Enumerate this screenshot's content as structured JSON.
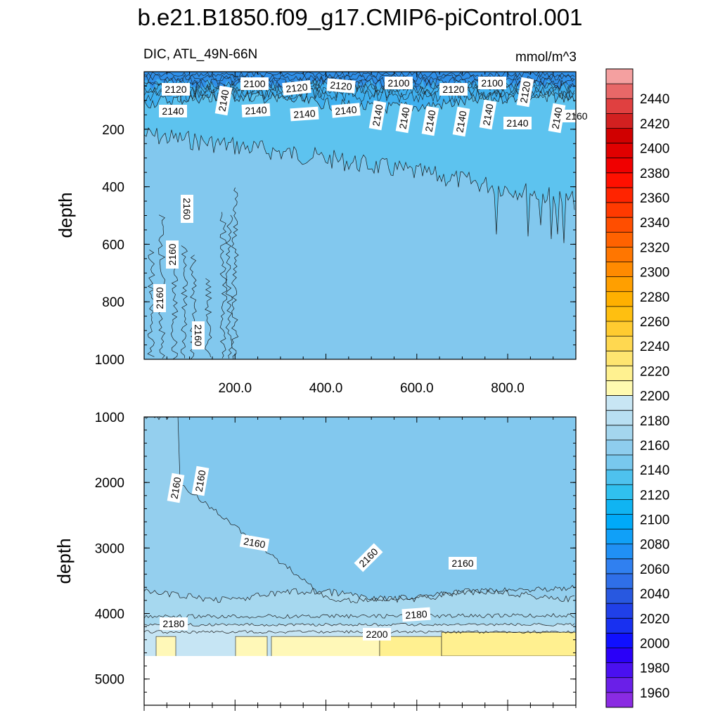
{
  "chart_data": {
    "type": "contour",
    "title": "b.e21.B1850.f09_g17.CMIP6-piControl.001",
    "variable_label": "DIC, ATL_49N-66N",
    "units": "mmol/m^3",
    "panels": [
      {
        "name": "upper",
        "ylabel": "depth",
        "ylim": [
          0,
          1000
        ],
        "yticks": [
          "200",
          "400",
          "600",
          "800",
          "1000"
        ],
        "xlim": [
          0,
          950
        ],
        "xticks": [
          "200.0",
          "400.0",
          "600.0",
          "800.0"
        ],
        "contour_labels": [
          "2120",
          "2100",
          "2120",
          "2120",
          "2100",
          "2120",
          "2100",
          "2120",
          "2140",
          "2140",
          "2140",
          "2140",
          "2140",
          "2140",
          "2140",
          "2140",
          "2140",
          "2140",
          "2140",
          "2140",
          "2160",
          "2160",
          "2160",
          "2160",
          "2160"
        ]
      },
      {
        "name": "lower",
        "ylabel": "depth",
        "ylim": [
          1000,
          5400
        ],
        "yticks": [
          "1000",
          "2000",
          "3000",
          "4000",
          "5000"
        ],
        "xlim": [
          0,
          950
        ],
        "contour_labels": [
          "2160",
          "2160",
          "2160",
          "2160",
          "2160",
          "2180",
          "2180",
          "2200"
        ]
      }
    ],
    "colorbar": {
      "levels": [
        "1960",
        "1980",
        "2000",
        "2020",
        "2040",
        "2060",
        "2080",
        "2100",
        "2120",
        "2140",
        "2160",
        "2180",
        "2200",
        "2220",
        "2240",
        "2260",
        "2280",
        "2300",
        "2320",
        "2340",
        "2360",
        "2380",
        "2400",
        "2420",
        "2440"
      ],
      "colors": [
        "#8a2be2",
        "#6a1fe8",
        "#4a10f0",
        "#2a00f8",
        "#1010ff",
        "#1830f0",
        "#2040e8",
        "#2858e0",
        "#2f6fe8",
        "#3080f0",
        "#2090f5",
        "#10a0f8",
        "#00aaf8",
        "#10b4f2",
        "#30c0ef",
        "#4ec2ee",
        "#78c8ee",
        "#8ecdee",
        "#a4d6ee",
        "#b8dff2",
        "#c8e6f4",
        "#fffab0",
        "#fff190",
        "#ffe570",
        "#ffd850",
        "#ffcb30",
        "#ffbf10",
        "#ffb000",
        "#ff9f00",
        "#ff8a00",
        "#ff7600",
        "#ff6200",
        "#ff4e00",
        "#ff3a00",
        "#ff2400",
        "#ff1000",
        "#f00000",
        "#e00000",
        "#d00000",
        "#d22020",
        "#e04040",
        "#e86868",
        "#f4a0a0"
      ]
    },
    "fills": {
      "surface_dark": "#2f8fe8",
      "band_2120": "#3fb0ef",
      "band_2140": "#5dc3ef",
      "interior_2160": "#82c8ee",
      "deep_2170": "#94cfee",
      "deep_2180": "#a6d8ef",
      "deep_2190": "#c6e5f4",
      "bottom_2200": "#fff8b8",
      "bottom_2210": "#fff090"
    }
  }
}
